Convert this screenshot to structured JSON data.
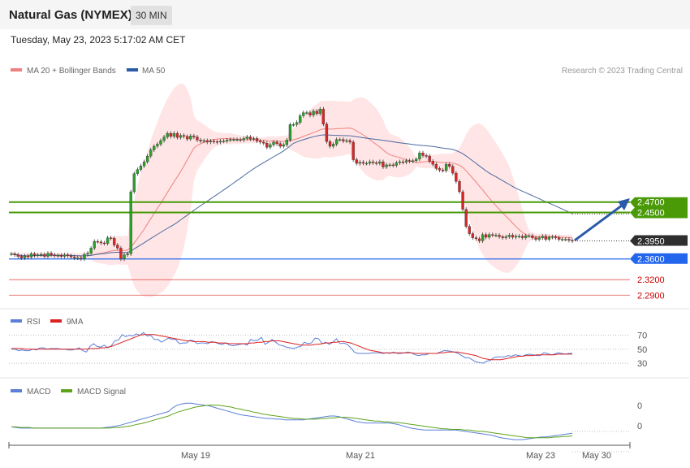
{
  "header": {
    "title": "Natural Gas (NYMEX)",
    "timeframe": "30 MIN"
  },
  "timestamp": "Tuesday, May 23, 2023 5:17:02 AM CET",
  "legend": {
    "ma20_bb": "MA 20 + Bollinger Bands",
    "ma50": "MA 50",
    "credit": "Research © 2023 Trading Central"
  },
  "rsi_legend": {
    "rsi": "RSI",
    "ma9": "9MA"
  },
  "macd_legend": {
    "macd": "MACD",
    "signal": "MACD Signal"
  },
  "colors": {
    "up": "#2ca02c",
    "down": "#d62728",
    "bb_fill": "#ffdcdc",
    "ma20": "#f08080",
    "ma50": "#4a6aa0",
    "green_level": "#4a9a08",
    "blue_level": "#2266ee",
    "red_level": "#e05555",
    "rsi": "#5b7fd8",
    "ma9": "#dd2222",
    "macd": "#5b7fd8",
    "signal": "#5ea31c",
    "arrow": "#2a5aa8",
    "price_tag": "#2e2e2e"
  },
  "chart_data": {
    "type": "candlestick",
    "price_levels": [
      {
        "value": 2.47,
        "label": "2.4700",
        "kind": "resistance"
      },
      {
        "value": 2.45,
        "label": "2.4500",
        "kind": "resistance"
      },
      {
        "value": 2.395,
        "label": "2.3950",
        "kind": "last"
      },
      {
        "value": 2.36,
        "label": "2.3600",
        "kind": "pivot"
      },
      {
        "value": 2.32,
        "label": "2.3200",
        "kind": "support"
      },
      {
        "value": 2.29,
        "label": "2.2900",
        "kind": "support"
      }
    ],
    "x_ticks": [
      "May 19",
      "May 21",
      "May 23",
      "May 30"
    ],
    "y_range": [
      2.27,
      2.71
    ],
    "candle_closes": [
      2.37,
      2.368,
      2.365,
      2.362,
      2.366,
      2.364,
      2.37,
      2.367,
      2.368,
      2.369,
      2.365,
      2.371,
      2.368,
      2.366,
      2.367,
      2.365,
      2.368,
      2.366,
      2.364,
      2.362,
      2.362,
      2.36,
      2.369,
      2.371,
      2.381,
      2.394,
      2.393,
      2.391,
      2.39,
      2.401,
      2.4,
      2.387,
      2.381,
      2.36,
      2.368,
      2.37,
      2.49,
      2.525,
      2.533,
      2.54,
      2.548,
      2.559,
      2.571,
      2.578,
      2.582,
      2.589,
      2.596,
      2.603,
      2.597,
      2.603,
      2.595,
      2.599,
      2.597,
      2.592,
      2.598,
      2.596,
      2.59,
      2.588,
      2.589,
      2.586,
      2.588,
      2.587,
      2.586,
      2.588,
      2.588,
      2.59,
      2.591,
      2.591,
      2.591,
      2.59,
      2.593,
      2.596,
      2.592,
      2.593,
      2.588,
      2.586,
      2.584,
      2.576,
      2.581,
      2.586,
      2.583,
      2.578,
      2.581,
      2.59,
      2.62,
      2.62,
      2.624,
      2.637,
      2.643,
      2.643,
      2.638,
      2.646,
      2.641,
      2.65,
      2.621,
      2.587,
      2.578,
      2.582,
      2.591,
      2.591,
      2.588,
      2.589,
      2.586,
      2.552,
      2.545,
      2.547,
      2.545,
      2.545,
      2.548,
      2.546,
      2.545,
      2.548,
      2.538,
      2.542,
      2.542,
      2.541,
      2.546,
      2.548,
      2.547,
      2.55,
      2.549,
      2.55,
      2.553,
      2.565,
      2.56,
      2.559,
      2.549,
      2.543,
      2.535,
      2.532,
      2.531,
      2.543,
      2.539,
      2.526,
      2.51,
      2.49,
      2.456,
      2.423,
      2.409,
      2.401,
      2.399,
      2.395,
      2.407,
      2.402,
      2.407,
      2.406,
      2.406,
      2.403,
      2.401,
      2.403,
      2.406,
      2.402,
      2.404,
      2.404,
      2.401,
      2.405,
      2.405,
      2.401,
      2.398,
      2.401,
      2.404,
      2.398,
      2.402,
      2.403,
      2.401,
      2.398,
      2.398,
      2.398,
      2.396,
      2.395
    ],
    "rsi_levels": [
      70,
      50,
      30
    ],
    "macd_levels": [
      0,
      0
    ],
    "rsi": [
      50,
      50,
      48,
      49,
      48,
      48,
      50,
      49,
      52,
      52,
      50,
      51,
      51,
      51,
      50,
      50,
      49,
      49,
      50,
      52,
      48,
      46,
      54,
      58,
      54,
      53,
      56,
      52,
      55,
      62,
      63,
      71,
      68,
      70,
      69,
      72,
      70,
      74,
      69,
      70,
      64,
      64,
      60,
      63,
      66,
      64,
      64,
      58,
      59,
      59,
      63,
      62,
      58,
      59,
      59,
      58,
      61,
      60,
      58,
      57,
      59,
      56,
      55,
      56,
      57,
      58,
      56,
      64,
      62,
      63,
      67,
      57,
      60,
      64,
      60,
      56,
      55,
      53,
      52,
      51,
      53,
      54,
      60,
      58,
      59,
      66,
      65,
      58,
      60,
      57,
      60,
      65,
      58,
      59,
      57,
      52,
      46,
      44,
      44,
      44,
      44,
      45,
      45,
      45,
      44,
      45,
      44,
      46,
      44,
      44,
      45,
      46,
      45,
      42,
      41,
      42,
      42,
      44,
      44,
      44,
      46,
      48,
      48,
      47,
      46,
      44,
      41,
      38,
      38,
      35,
      32,
      31,
      30,
      33,
      34,
      38,
      39,
      39,
      39,
      41,
      40,
      42,
      41,
      40,
      42,
      43,
      42,
      41,
      41,
      45,
      44,
      42,
      43,
      45,
      44,
      43,
      44,
      44
    ],
    "rsi_ma9": [
      51,
      51,
      51,
      51,
      50,
      50,
      50,
      50,
      50,
      50,
      50,
      50,
      50,
      50,
      50,
      50,
      50,
      50,
      50,
      50,
      50,
      50,
      51,
      51,
      51,
      52,
      52,
      53,
      54,
      56,
      58,
      60,
      62,
      64,
      66,
      68,
      70,
      71,
      71,
      71,
      71,
      70,
      69,
      68,
      67,
      66,
      65,
      64,
      63,
      62,
      62,
      61,
      61,
      61,
      61,
      60,
      60,
      60,
      59,
      59,
      59,
      58,
      58,
      58,
      58,
      58,
      58,
      59,
      59,
      60,
      60,
      61,
      61,
      62,
      62,
      62,
      61,
      60,
      59,
      58,
      57,
      56,
      56,
      56,
      56,
      57,
      57,
      58,
      59,
      59,
      60,
      60,
      61,
      61,
      60,
      59,
      57,
      55,
      53,
      51,
      49,
      48,
      47,
      46,
      45,
      45,
      45,
      45,
      45,
      45,
      45,
      45,
      45,
      44,
      44,
      44,
      44,
      44,
      44,
      44,
      45,
      45,
      46,
      46,
      46,
      46,
      45,
      44,
      43,
      42,
      41,
      39,
      37,
      36,
      35,
      35,
      35,
      35,
      36,
      37,
      38,
      39,
      40,
      40,
      41,
      41,
      41,
      42,
      42,
      42,
      42,
      42,
      42,
      43,
      43,
      43,
      43,
      43
    ],
    "macd": [
      0,
      -0.001,
      -0.002,
      -0.002,
      -0.002,
      -0.002,
      -0.002,
      -0.002,
      -0.002,
      -0.002,
      -0.002,
      -0.002,
      -0.002,
      -0.002,
      -0.002,
      -0.002,
      -0.002,
      -0.002,
      -0.002,
      -0.002,
      -0.002,
      -0.001,
      0,
      0.001,
      0.002,
      0.004,
      0.006,
      0.008,
      0.01,
      0.012,
      0.014,
      0.016,
      0.018,
      0.02,
      0.022,
      0.024,
      0.03,
      0.034,
      0.036,
      0.037,
      0.037,
      0.036,
      0.035,
      0.034,
      0.033,
      0.031,
      0.029,
      0.027,
      0.025,
      0.023,
      0.021,
      0.019,
      0.018,
      0.017,
      0.016,
      0.015,
      0.014,
      0.013,
      0.013,
      0.012,
      0.012,
      0.011,
      0.011,
      0.011,
      0.011,
      0.011,
      0.012,
      0.013,
      0.014,
      0.015,
      0.016,
      0.017,
      0.017,
      0.016,
      0.014,
      0.012,
      0.01,
      0.008,
      0.007,
      0.006,
      0.006,
      0.006,
      0.006,
      0.006,
      0.006,
      0.005,
      0.004,
      0.002,
      0,
      -0.002,
      -0.003,
      -0.004,
      -0.005,
      -0.005,
      -0.005,
      -0.005,
      -0.005,
      -0.005,
      -0.005,
      -0.005,
      -0.006,
      -0.007,
      -0.008,
      -0.009,
      -0.01,
      -0.011,
      -0.012,
      -0.013,
      -0.015,
      -0.017,
      -0.018,
      -0.019,
      -0.02,
      -0.02,
      -0.02,
      -0.019,
      -0.018,
      -0.017,
      -0.016,
      -0.016,
      -0.015,
      -0.014,
      -0.013,
      -0.012,
      -0.011,
      -0.01
    ],
    "macd_signal": [
      0,
      0,
      -0.001,
      -0.001,
      -0.001,
      -0.002,
      -0.002,
      -0.002,
      -0.002,
      -0.002,
      -0.002,
      -0.002,
      -0.002,
      -0.002,
      -0.002,
      -0.002,
      -0.002,
      -0.002,
      -0.002,
      -0.002,
      -0.002,
      -0.002,
      -0.002,
      -0.001,
      -0.001,
      0,
      0.001,
      0.002,
      0.004,
      0.005,
      0.007,
      0.009,
      0.011,
      0.013,
      0.015,
      0.017,
      0.02,
      0.023,
      0.025,
      0.027,
      0.029,
      0.031,
      0.032,
      0.033,
      0.034,
      0.034,
      0.034,
      0.033,
      0.032,
      0.031,
      0.029,
      0.028,
      0.026,
      0.025,
      0.023,
      0.022,
      0.02,
      0.019,
      0.018,
      0.017,
      0.016,
      0.015,
      0.014,
      0.013,
      0.013,
      0.012,
      0.012,
      0.012,
      0.012,
      0.013,
      0.013,
      0.014,
      0.014,
      0.015,
      0.015,
      0.015,
      0.014,
      0.013,
      0.012,
      0.011,
      0.01,
      0.009,
      0.009,
      0.008,
      0.008,
      0.007,
      0.007,
      0.006,
      0.005,
      0.004,
      0.003,
      0.002,
      0.001,
      0,
      -0.001,
      -0.002,
      -0.003,
      -0.003,
      -0.004,
      -0.004,
      -0.004,
      -0.005,
      -0.005,
      -0.006,
      -0.007,
      -0.007,
      -0.008,
      -0.009,
      -0.01,
      -0.011,
      -0.012,
      -0.013,
      -0.014,
      -0.015,
      -0.016,
      -0.017,
      -0.017,
      -0.017,
      -0.017,
      -0.017,
      -0.017,
      -0.016,
      -0.016,
      -0.015,
      -0.015,
      -0.014
    ]
  }
}
